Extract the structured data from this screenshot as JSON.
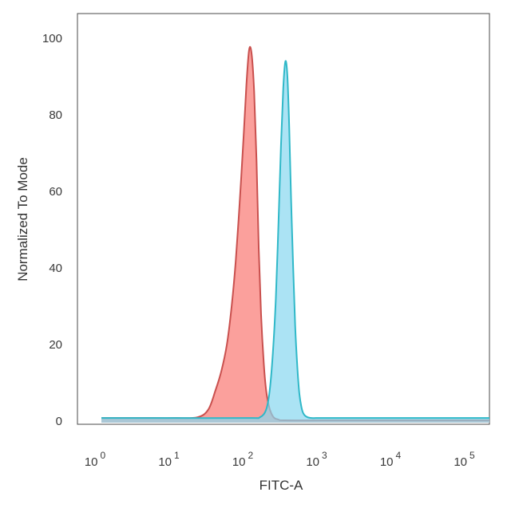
{
  "chart_data": {
    "type": "area",
    "title": "",
    "xlabel": "FITC-A",
    "ylabel": "Normalized To Mode",
    "x_scale": "log10",
    "xlim": [
      1,
      200000
    ],
    "ylim": [
      0,
      105
    ],
    "y_ticks": [
      0,
      20,
      40,
      60,
      80,
      100
    ],
    "x_ticks": [
      {
        "value": 1,
        "base": "10",
        "exp": "0"
      },
      {
        "value": 10,
        "base": "10",
        "exp": "1"
      },
      {
        "value": 100,
        "base": "10",
        "exp": "2"
      },
      {
        "value": 1000,
        "base": "10",
        "exp": "3"
      },
      {
        "value": 10000,
        "base": "10",
        "exp": "4"
      },
      {
        "value": 100000,
        "base": "10",
        "exp": "5"
      }
    ],
    "grid": false,
    "legend": "none",
    "series": [
      {
        "fill": "#fa8f8b",
        "stroke": "#c9504e",
        "x": [
          1,
          5,
          10,
          20,
          28,
          35,
          42,
          50,
          58,
          66,
          75,
          84,
          92,
          100,
          108,
          117,
          126,
          135,
          145,
          158,
          170,
          185,
          200,
          220,
          250,
          300,
          1000,
          10000,
          200000
        ],
        "y": [
          0.8,
          0.8,
          0.8,
          1,
          3,
          8,
          13,
          20,
          30,
          42,
          58,
          74,
          88,
          97,
          96,
          86,
          68,
          45,
          28,
          15,
          8,
          4,
          2,
          0.8,
          0.4,
          0.2,
          0.2,
          0.2,
          0.2
        ]
      },
      {
        "fill": "#87d7f0",
        "stroke": "#2fb8c8",
        "x": [
          1,
          10,
          100,
          140,
          170,
          190,
          210,
          230,
          250,
          270,
          290,
          310,
          330,
          350,
          370,
          395,
          420,
          450,
          480,
          520,
          560,
          620,
          700,
          800,
          1000,
          2000,
          10000,
          200000
        ],
        "y": [
          0.8,
          0.8,
          0.8,
          1,
          3,
          8,
          18,
          32,
          52,
          72,
          87,
          94,
          90,
          76,
          58,
          40,
          25,
          14,
          7,
          3,
          1.6,
          1,
          0.8,
          0.8,
          0.8,
          0.8,
          0.8,
          0.8
        ]
      }
    ]
  }
}
